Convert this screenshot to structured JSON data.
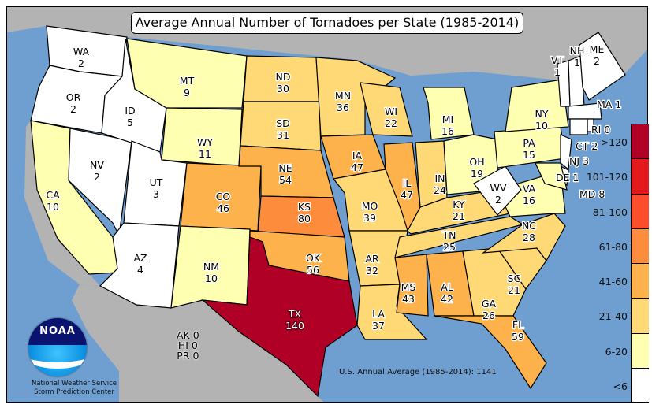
{
  "title": "Average Annual Number of Tornadoes per State (1985-2014)",
  "colors": {
    "ocean": "#6f9fd0",
    "land": "#b3b3b3"
  },
  "legend": [
    {
      "label": ">120",
      "color": "#b10026"
    },
    {
      "label": "101-120",
      "color": "#e31a1c"
    },
    {
      "label": "81-100",
      "color": "#fc4e2a"
    },
    {
      "label": "61-80",
      "color": "#fd8d3c"
    },
    {
      "label": "41-60",
      "color": "#feb24c"
    },
    {
      "label": "21-40",
      "color": "#fed976"
    },
    {
      "label": "6-20",
      "color": "#ffffb2"
    },
    {
      "label": "<6",
      "color": "#ffffff"
    }
  ],
  "states": [
    {
      "abbr": "WA",
      "value": 2
    },
    {
      "abbr": "OR",
      "value": 2
    },
    {
      "abbr": "CA",
      "value": 10
    },
    {
      "abbr": "NV",
      "value": 2
    },
    {
      "abbr": "ID",
      "value": 5
    },
    {
      "abbr": "MT",
      "value": 9
    },
    {
      "abbr": "WY",
      "value": 11
    },
    {
      "abbr": "UT",
      "value": 3
    },
    {
      "abbr": "AZ",
      "value": 4
    },
    {
      "abbr": "CO",
      "value": 46
    },
    {
      "abbr": "NM",
      "value": 10
    },
    {
      "abbr": "ND",
      "value": 30
    },
    {
      "abbr": "SD",
      "value": 31
    },
    {
      "abbr": "NE",
      "value": 54
    },
    {
      "abbr": "KS",
      "value": 80
    },
    {
      "abbr": "OK",
      "value": 56
    },
    {
      "abbr": "TX",
      "value": 140
    },
    {
      "abbr": "MN",
      "value": 36
    },
    {
      "abbr": "IA",
      "value": 47
    },
    {
      "abbr": "MO",
      "value": 39
    },
    {
      "abbr": "AR",
      "value": 32
    },
    {
      "abbr": "LA",
      "value": 37
    },
    {
      "abbr": "WI",
      "value": 22
    },
    {
      "abbr": "IL",
      "value": 47
    },
    {
      "abbr": "MI",
      "value": 16
    },
    {
      "abbr": "IN",
      "value": 24
    },
    {
      "abbr": "OH",
      "value": 19
    },
    {
      "abbr": "KY",
      "value": 21
    },
    {
      "abbr": "TN",
      "value": 25
    },
    {
      "abbr": "MS",
      "value": 43
    },
    {
      "abbr": "AL",
      "value": 42
    },
    {
      "abbr": "GA",
      "value": 26
    },
    {
      "abbr": "FL",
      "value": 59
    },
    {
      "abbr": "SC",
      "value": 21
    },
    {
      "abbr": "NC",
      "value": 28
    },
    {
      "abbr": "VA",
      "value": 16
    },
    {
      "abbr": "WV",
      "value": 2
    },
    {
      "abbr": "PA",
      "value": 15
    },
    {
      "abbr": "NY",
      "value": 10
    },
    {
      "abbr": "VT",
      "value": 1
    },
    {
      "abbr": "NH",
      "value": 1
    },
    {
      "abbr": "ME",
      "value": 2
    },
    {
      "abbr": "MA",
      "value": 1
    },
    {
      "abbr": "RI",
      "value": 0
    },
    {
      "abbr": "CT",
      "value": 2
    },
    {
      "abbr": "NJ",
      "value": 3
    },
    {
      "abbr": "DE",
      "value": 1
    },
    {
      "abbr": "MD",
      "value": 8
    }
  ],
  "territories": [
    {
      "abbr": "AK",
      "value": 0
    },
    {
      "abbr": "HI",
      "value": 0
    },
    {
      "abbr": "PR",
      "value": 0
    }
  ],
  "average_note": "U.S. Annual Average (1985-2014): 1141",
  "logo_text": "NOAA",
  "credit": {
    "line1": "National Weather Service",
    "line2": "Storm Prediction Center"
  }
}
